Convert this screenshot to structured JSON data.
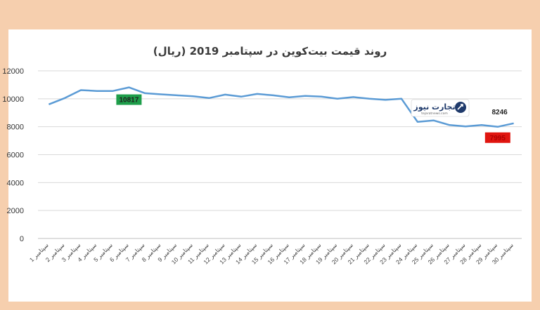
{
  "chart_data": {
    "type": "line",
    "title": "روند قیمت بیت‌کوین در سپتامبر 2019 (ریال)",
    "x_prefix_word": "سپتامبر",
    "categories": [
      "1",
      "2",
      "3",
      "4",
      "5",
      "6",
      "7",
      "8",
      "9",
      "10",
      "11",
      "12",
      "13",
      "14",
      "15",
      "16",
      "17",
      "18",
      "19",
      "20",
      "21",
      "22",
      "23",
      "24",
      "25",
      "26",
      "27",
      "28",
      "29",
      "30"
    ],
    "series": [
      {
        "values": [
          9600,
          10050,
          10620,
          10560,
          10560,
          10817,
          10400,
          10320,
          10250,
          10180,
          10050,
          10300,
          10150,
          10350,
          10250,
          10100,
          10200,
          10150,
          10000,
          10120,
          10000,
          9920,
          10000,
          8350,
          8450,
          8120,
          8020,
          8120,
          7995,
          8246
        ]
      }
    ],
    "yticks": [
      "12000",
      "10000",
      "8000",
      "6000",
      "4000",
      "2000",
      "0"
    ],
    "ylim": [
      0,
      12000
    ],
    "grid": true,
    "line_color": "#5b9bd5",
    "annotations": [
      {
        "label": "10817",
        "x_index": 5,
        "bg": "#1e9e4a",
        "fg": "#1f1f1f"
      },
      {
        "label": "7995",
        "x_index": 28,
        "bg": "#e0150f",
        "fg": "#b00000"
      },
      {
        "label": "8246",
        "x_index": 29,
        "bg": "#ffffff",
        "fg": "#222222"
      }
    ]
  },
  "logo": {
    "main": "تجارت نیوز",
    "sub": "tejaratnews.com"
  }
}
